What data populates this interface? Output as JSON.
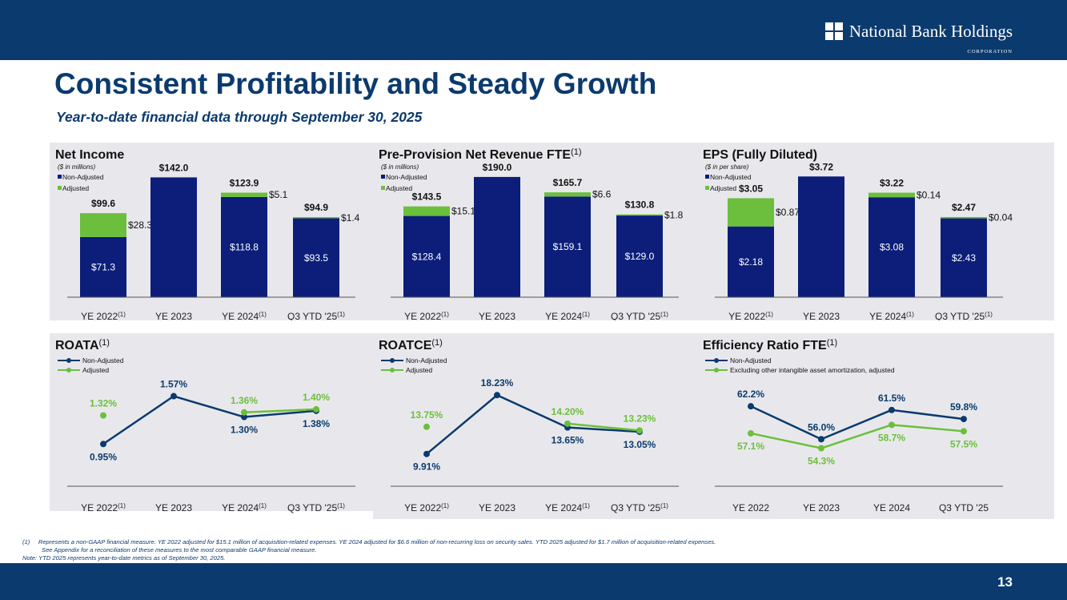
{
  "header": {
    "logo_text": "National Bank Holdings",
    "logo_sub": "CORPORATION"
  },
  "title": "Consistent Profitability and Steady Growth",
  "subtitle": "Year-to-date financial data through September 30, 2025",
  "footnotes": {
    "note1_marker": "(1)",
    "note1_line1": "Represents a non-GAAP financial measure. YE 2022 adjusted for $15.1 million of acquisition-related expenses. YE 2024 adjusted for $6.6 million of non-recurring loss on security sales. YTD 2025 adjusted for $1.7 million of acquisition-related expenses.",
    "note1_line2": "See Appendix for a reconciliation of these measures to the most comparable GAAP financial measure.",
    "note2": "Note: YTD 2025 represents year-to-date metrics as of September 30, 2025."
  },
  "page_number": "13",
  "colors": {
    "navy": "#0b3a6e",
    "bar_navy": "#0c1e7a",
    "green": "#6cbf3c",
    "line_green": "#6cbf3c",
    "panel": "#e8e8ec"
  },
  "chart_data": [
    {
      "id": "net-income",
      "type": "bar",
      "stacked": true,
      "title": "Net Income",
      "title_sup": "",
      "unit_note": "($ in millions)",
      "categories": [
        {
          "label": "YE 2022",
          "sup": "(1)"
        },
        {
          "label": "YE 2023",
          "sup": ""
        },
        {
          "label": "YE 2024",
          "sup": "(1)"
        },
        {
          "label": "Q3 YTD '25",
          "sup": "(1)"
        }
      ],
      "ylim": [
        0,
        150
      ],
      "series": [
        {
          "name": "Non-Adjusted",
          "values": [
            71.3,
            142.0,
            118.8,
            93.5
          ],
          "labels": [
            "$71.3",
            "",
            "$118.8",
            "$93.5"
          ]
        },
        {
          "name": "Adjusted",
          "values": [
            28.3,
            0,
            5.1,
            1.4
          ],
          "labels": [
            "$28.3",
            "",
            "$5.1",
            "$1.4"
          ]
        }
      ],
      "totals": [
        "$99.6",
        "$142.0",
        "$123.9",
        "$94.9"
      ]
    },
    {
      "id": "pprn",
      "type": "bar",
      "stacked": true,
      "title": "Pre-Provision Net Revenue FTE",
      "title_sup": "(1)",
      "unit_note": "($ in millions)",
      "categories": [
        {
          "label": "YE 2022",
          "sup": "(1)"
        },
        {
          "label": "YE 2023",
          "sup": ""
        },
        {
          "label": "YE 2024",
          "sup": "(1)"
        },
        {
          "label": "Q3 YTD '25",
          "sup": "(1)"
        }
      ],
      "ylim": [
        0,
        200
      ],
      "series": [
        {
          "name": "Non-Adjusted",
          "values": [
            128.4,
            190.0,
            159.1,
            129.0
          ],
          "labels": [
            "$128.4",
            "",
            "$159.1",
            "$129.0"
          ]
        },
        {
          "name": "Adjusted",
          "values": [
            15.1,
            0,
            6.6,
            1.8
          ],
          "labels": [
            "$15.1",
            "",
            "$6.6",
            "$1.8"
          ]
        }
      ],
      "totals": [
        "$143.5",
        "$190.0",
        "$165.7",
        "$130.8"
      ]
    },
    {
      "id": "eps",
      "type": "bar",
      "stacked": true,
      "title": "EPS (Fully Diluted)",
      "title_sup": "",
      "unit_note": "($ in per share)",
      "categories": [
        {
          "label": "YE 2022",
          "sup": "(1)"
        },
        {
          "label": "YE 2023",
          "sup": ""
        },
        {
          "label": "YE 2024",
          "sup": "(1)"
        },
        {
          "label": "Q3 YTD '25",
          "sup": "(1)"
        }
      ],
      "ylim": [
        0,
        3.9
      ],
      "series": [
        {
          "name": "Non-Adjusted",
          "values": [
            2.18,
            3.72,
            3.08,
            2.43
          ],
          "labels": [
            "$2.18",
            "",
            "$3.08",
            "$2.43"
          ]
        },
        {
          "name": "Adjusted",
          "values": [
            0.87,
            0,
            0.14,
            0.04
          ],
          "labels": [
            "$0.87",
            "",
            "$0.14",
            "$0.04"
          ]
        }
      ],
      "totals": [
        "$3.05",
        "$3.72",
        "$3.22",
        "$2.47"
      ]
    },
    {
      "id": "roata",
      "type": "line",
      "title": "ROATA",
      "title_sup": "(1)",
      "categories": [
        {
          "label": "YE 2022",
          "sup": "(1)"
        },
        {
          "label": "YE 2023",
          "sup": ""
        },
        {
          "label": "YE 2024",
          "sup": "(1)"
        },
        {
          "label": "Q3 YTD '25",
          "sup": "(1)"
        }
      ],
      "ylim": [
        0.6,
        1.7
      ],
      "series": [
        {
          "name": "Non-Adjusted",
          "values": [
            0.95,
            1.57,
            1.3,
            1.38
          ],
          "labels": [
            "0.95%",
            "1.57%",
            "1.30%",
            "1.38%"
          ]
        },
        {
          "name": "Adjusted",
          "values": [
            1.32,
            null,
            1.36,
            1.4
          ],
          "labels": [
            "1.32%",
            "",
            "1.36%",
            "1.40%"
          ]
        }
      ]
    },
    {
      "id": "roatce",
      "type": "line",
      "title": "ROATCE",
      "title_sup": "(1)",
      "categories": [
        {
          "label": "YE 2022",
          "sup": "(1)"
        },
        {
          "label": "YE 2023",
          "sup": ""
        },
        {
          "label": "YE 2024",
          "sup": "(1)"
        },
        {
          "label": "Q3 YTD '25",
          "sup": "(1)"
        }
      ],
      "ylim": [
        7.5,
        19.5
      ],
      "series": [
        {
          "name": "Non-Adjusted",
          "values": [
            9.91,
            18.23,
            13.65,
            13.05
          ],
          "labels": [
            "9.91%",
            "18.23%",
            "13.65%",
            "13.05%"
          ]
        },
        {
          "name": "Adjusted",
          "values": [
            13.75,
            null,
            14.2,
            13.23
          ],
          "labels": [
            "13.75%",
            "",
            "14.20%",
            "13.23%"
          ]
        }
      ]
    },
    {
      "id": "efficiency",
      "type": "line",
      "title": "Efficiency Ratio FTE",
      "title_sup": "(1)",
      "categories": [
        {
          "label": "YE 2022",
          "sup": ""
        },
        {
          "label": "YE 2023",
          "sup": ""
        },
        {
          "label": "YE 2024",
          "sup": ""
        },
        {
          "label": "Q3 YTD '25",
          "sup": ""
        }
      ],
      "ylim": [
        50,
        66
      ],
      "series": [
        {
          "name": "Non-Adjusted",
          "values": [
            62.2,
            56.0,
            61.5,
            59.8
          ],
          "labels": [
            "62.2%",
            "56.0%",
            "61.5%",
            "59.8%"
          ]
        },
        {
          "name": "Excluding other intangible asset amortization, adjusted",
          "values": [
            57.1,
            54.3,
            58.7,
            57.5
          ],
          "labels": [
            "57.1%",
            "54.3%",
            "58.7%",
            "57.5%"
          ]
        }
      ]
    }
  ]
}
